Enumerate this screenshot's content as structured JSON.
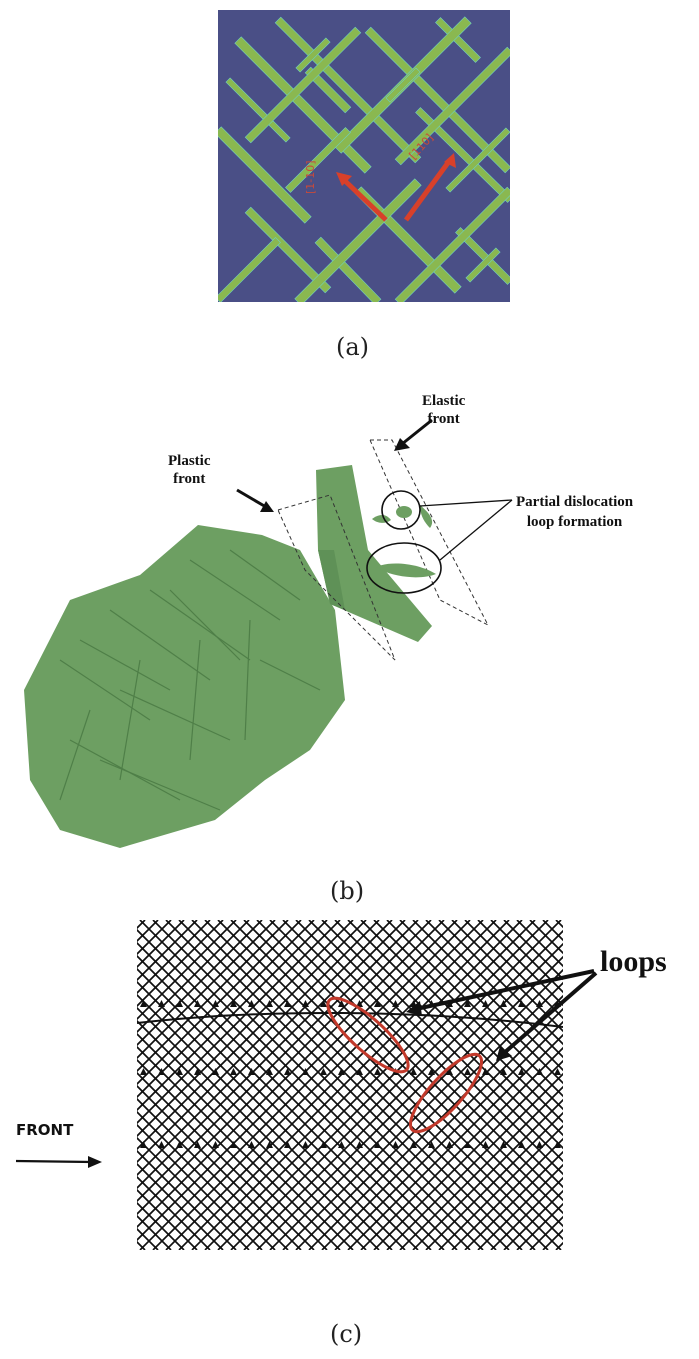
{
  "figure": {
    "panel_a": {
      "caption": "(a)",
      "arrow_labels": [
        "[1-10]",
        "[110]"
      ],
      "colors": {
        "background": "#4a4f86",
        "bands": "#8ab850",
        "arrows": "#d8402a"
      }
    },
    "panel_b": {
      "caption": "(b)",
      "labels": {
        "elastic_front": [
          "Elastic",
          "front"
        ],
        "plastic_front": [
          "Plastic",
          "front"
        ],
        "partial_loop": [
          "Partial dislocation",
          "loop formation"
        ]
      },
      "colors": {
        "crystal": "#6d9f62",
        "crystal_dark": "#4f7f48"
      }
    },
    "panel_c": {
      "caption": "(c)",
      "labels": {
        "loops": "loops",
        "front": "FRONT"
      },
      "colors": {
        "ellipses": "#c2392b",
        "mesh": "#111111"
      }
    }
  }
}
